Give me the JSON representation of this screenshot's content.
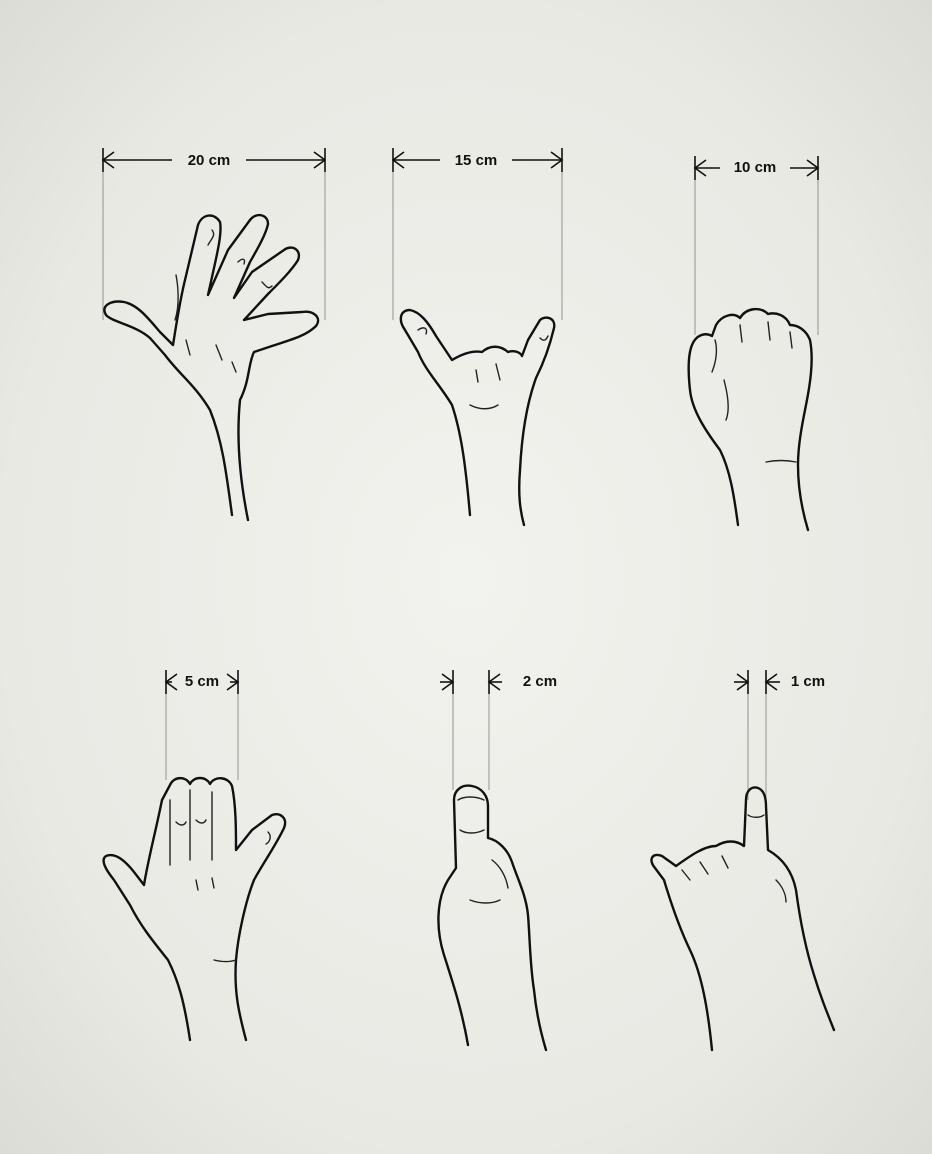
{
  "figure": {
    "panels": [
      {
        "id": "panel-20",
        "label": "20 cm",
        "gesture": "open-hand"
      },
      {
        "id": "panel-15",
        "label": "15 cm",
        "gesture": "thumb-little-finger"
      },
      {
        "id": "panel-10",
        "label": "10 cm",
        "gesture": "fist"
      },
      {
        "id": "panel-5",
        "label": "5 cm",
        "gesture": "three-fingers"
      },
      {
        "id": "panel-2",
        "label": "2 cm",
        "gesture": "thumb-up"
      },
      {
        "id": "panel-1",
        "label": "1 cm",
        "gesture": "little-finger"
      }
    ]
  }
}
